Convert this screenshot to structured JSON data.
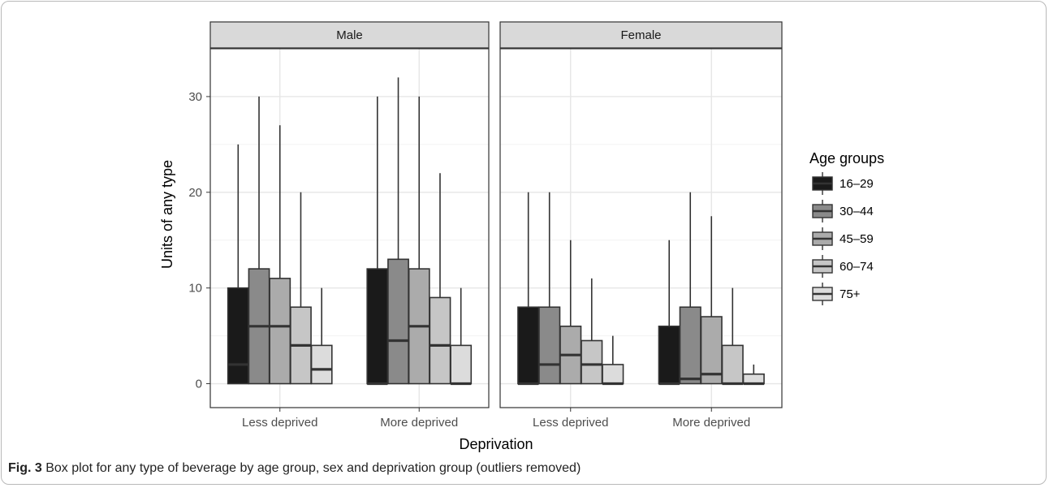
{
  "caption": {
    "label": "Fig. 3",
    "text": " Box plot for any type of beverage by age group, sex and deprivation group (outliers removed)"
  },
  "chart_data": {
    "type": "box",
    "xlabel": "Deprivation",
    "ylabel": "Units of any type",
    "ylim": [
      -2.5,
      35
    ],
    "yticks": [
      0,
      10,
      20,
      30
    ],
    "grid": true,
    "legend": {
      "title": "Age groups",
      "position": "right",
      "entries": [
        {
          "label": "16–29",
          "color": "#1a1a1a"
        },
        {
          "label": "30–44",
          "color": "#8a8a8a"
        },
        {
          "label": "45–59",
          "color": "#ababab"
        },
        {
          "label": "60–74",
          "color": "#c6c6c6"
        },
        {
          "label": "75+",
          "color": "#dcdcdc"
        }
      ]
    },
    "categories": [
      "Less deprived",
      "More deprived"
    ],
    "panels": [
      {
        "name": "Male",
        "groups": [
          {
            "category": "Less deprived",
            "boxes": [
              {
                "age": "16–29",
                "min": 0,
                "q1": 0,
                "median": 2,
                "q3": 10,
                "max": 25
              },
              {
                "age": "30–44",
                "min": 0,
                "q1": 0,
                "median": 6,
                "q3": 12,
                "max": 30
              },
              {
                "age": "45–59",
                "min": 0,
                "q1": 0,
                "median": 6,
                "q3": 11,
                "max": 27
              },
              {
                "age": "60–74",
                "min": 0,
                "q1": 0,
                "median": 4,
                "q3": 8,
                "max": 20
              },
              {
                "age": "75+",
                "min": 0,
                "q1": 0,
                "median": 1.5,
                "q3": 4,
                "max": 10
              }
            ]
          },
          {
            "category": "More deprived",
            "boxes": [
              {
                "age": "16–29",
                "min": 0,
                "q1": 0,
                "median": 0,
                "q3": 12,
                "max": 30
              },
              {
                "age": "30–44",
                "min": 0,
                "q1": 0,
                "median": 4.5,
                "q3": 13,
                "max": 32
              },
              {
                "age": "45–59",
                "min": 0,
                "q1": 0,
                "median": 6,
                "q3": 12,
                "max": 30
              },
              {
                "age": "60–74",
                "min": 0,
                "q1": 0,
                "median": 4,
                "q3": 9,
                "max": 22
              },
              {
                "age": "75+",
                "min": 0,
                "q1": 0,
                "median": 0,
                "q3": 4,
                "max": 10
              }
            ]
          }
        ]
      },
      {
        "name": "Female",
        "groups": [
          {
            "category": "Less deprived",
            "boxes": [
              {
                "age": "16–29",
                "min": 0,
                "q1": 0,
                "median": 0,
                "q3": 8,
                "max": 20
              },
              {
                "age": "30–44",
                "min": 0,
                "q1": 0,
                "median": 2,
                "q3": 8,
                "max": 20
              },
              {
                "age": "45–59",
                "min": 0,
                "q1": 0,
                "median": 3,
                "q3": 6,
                "max": 15
              },
              {
                "age": "60–74",
                "min": 0,
                "q1": 0,
                "median": 2,
                "q3": 4.5,
                "max": 11
              },
              {
                "age": "75+",
                "min": 0,
                "q1": 0,
                "median": 0,
                "q3": 2,
                "max": 5
              }
            ]
          },
          {
            "category": "More deprived",
            "boxes": [
              {
                "age": "16–29",
                "min": 0,
                "q1": 0,
                "median": 0,
                "q3": 6,
                "max": 15
              },
              {
                "age": "30–44",
                "min": 0,
                "q1": 0,
                "median": 0.5,
                "q3": 8,
                "max": 20
              },
              {
                "age": "45–59",
                "min": 0,
                "q1": 0,
                "median": 1,
                "q3": 7,
                "max": 17.5
              },
              {
                "age": "60–74",
                "min": 0,
                "q1": 0,
                "median": 0,
                "q3": 4,
                "max": 10
              },
              {
                "age": "75+",
                "min": 0,
                "q1": 0,
                "median": 0,
                "q3": 1,
                "max": 2
              }
            ]
          }
        ]
      }
    ]
  }
}
